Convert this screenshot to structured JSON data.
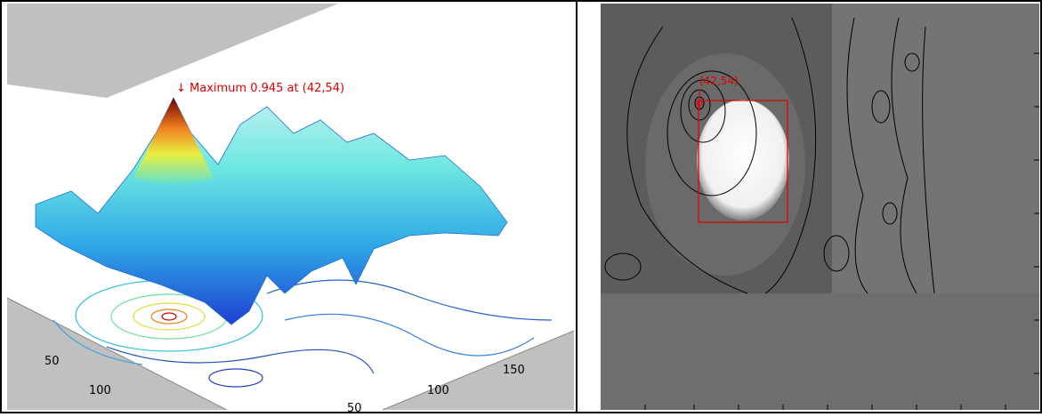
{
  "left_panel": {
    "annotation": "↓ Maximum 0.945 at (42,54)",
    "left_axis_ticks": [
      "50",
      "100"
    ],
    "right_axis_ticks": [
      "150",
      "100",
      "50"
    ]
  },
  "right_panel": {
    "annotation": "(42,54)"
  }
}
